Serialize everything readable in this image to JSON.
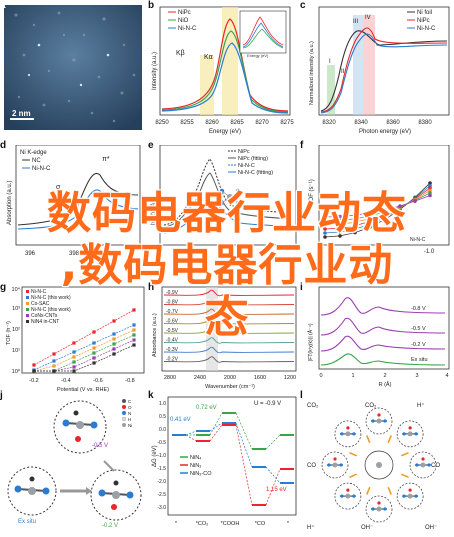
{
  "overlay": {
    "line1": "数码电器行业动态",
    "line2": ",数码电器行业动",
    "line3": "态"
  },
  "panel_labels": [
    "a",
    "b",
    "c",
    "d",
    "e",
    "f",
    "g",
    "h",
    "i",
    "j",
    "k",
    "l"
  ],
  "panel_a": {
    "scale_text": "2 nm"
  },
  "panel_b": {
    "legend": [
      "NiPc",
      "NiO",
      "Ni-N-C"
    ],
    "peak_labels": [
      "Kβ",
      "Kα"
    ],
    "xlabel": "Energy (eV)",
    "ylabel": "Intensity (a.u.)",
    "xticks": [
      "8250",
      "8255",
      "8260",
      "8265",
      "8270",
      "8275"
    ],
    "inset_xlabel": "Energy (eV)",
    "inset_ylabel": "Intensity"
  },
  "panel_c": {
    "legend": [
      "Ni foil",
      "NiPc",
      "Ni-N-C"
    ],
    "roman": [
      "I",
      "II",
      "III",
      "IV"
    ],
    "xlabel": "Photon energy (eV)",
    "ylabel": "Normalized intensity (a.u.)",
    "xticks": [
      "8320",
      "8340",
      "8360",
      "8380"
    ]
  },
  "panel_d": {
    "title": "Ni K-edge",
    "legend": [
      "NC",
      "Ni-N-C"
    ],
    "xticks": [
      "396",
      "398"
    ],
    "ylabel": "Absorption (a.u.)",
    "markers": [
      "π*",
      "σ"
    ]
  },
  "panel_e": {
    "legend": [
      "NiPc",
      "NiPc (fitting)",
      "Ni-N-C",
      "Ni-N-C (fitting)"
    ],
    "ylabel": "|χ(R)| (Å⁻³)"
  },
  "panel_f": {
    "ylabel": "TOF (s⁻¹)",
    "legend_suffix": "Ni-N-C",
    "xticks": [
      "-1.0"
    ]
  },
  "panel_g": {
    "legend": [
      "Ni-N-C",
      "Ni-N-C (this work)",
      "Co-SAC",
      "Ni-N-C (this work)",
      "CoNx-CNTs",
      "NiN4 in-CNT"
    ],
    "ylabel": "TOF (h⁻¹)",
    "xlabel": "Potential (V vs. RHE)",
    "xticks": [
      "-0.2",
      "-0.4",
      "-0.6",
      "-0.8"
    ],
    "yticks": [
      "10⁰",
      "10¹",
      "10²",
      "10³",
      "10⁴"
    ]
  },
  "panel_h": {
    "potentials": [
      "-0.9V",
      "-0.8V",
      "-0.7V",
      "-0.6V",
      "-0.5V",
      "-0.4V",
      "-0.3V",
      "-0.2V"
    ],
    "xlabel": "Wavenumber (cm⁻¹)",
    "ylabel": "Absorbance (a.u.)",
    "xticks": [
      "2800",
      "2400",
      "2000",
      "1600",
      "1200"
    ]
  },
  "panel_i": {
    "curve_labels": [
      "-0.8 V",
      "-0.5 V",
      "-0.2 V",
      "Ex situ"
    ],
    "xlabel": "R (Å)",
    "ylabel": "|FT(k³χ(k))| (Å⁻⁴)",
    "xticks": [
      "0",
      "1",
      "2",
      "3",
      "4"
    ]
  },
  "panel_j": {
    "legend": [
      "C",
      "O",
      "N",
      "H",
      "Ni"
    ],
    "label_top": "-0.5 V",
    "label_right": "-0.2 V",
    "label_left": "Ex situ"
  },
  "panel_k": {
    "title": "U = -0.9 V",
    "levels": [
      "0.41 eV",
      "0.72 eV",
      "1.15 eV"
    ],
    "legend": [
      "NiN₄",
      "NiN₃",
      "NiN₃-CO"
    ],
    "xticks": [
      "*",
      "*CO₂",
      "*COOH",
      "*CO",
      "*"
    ],
    "ylabel": "ΔG (eV)",
    "yticks": [
      "1.0",
      "0.5",
      "0.0",
      "-0.5",
      "-1.0",
      "-1.5",
      "-2.0",
      "-2.5",
      "-3.0"
    ]
  },
  "panel_l": {
    "labels": [
      "CO₂",
      "CO₂",
      "H⁺",
      "H⁺",
      "OH⁻",
      "OH⁻",
      "CO",
      "CO"
    ],
    "legend": [
      "C",
      "O",
      "N",
      "H",
      "Ni"
    ]
  },
  "colors": {
    "overlay": "#ff6b1a",
    "red": "#e8262b",
    "blue": "#2b7bd1",
    "green": "#3aa54a",
    "orange": "#f39a2b",
    "purple": "#9b3fb0"
  }
}
